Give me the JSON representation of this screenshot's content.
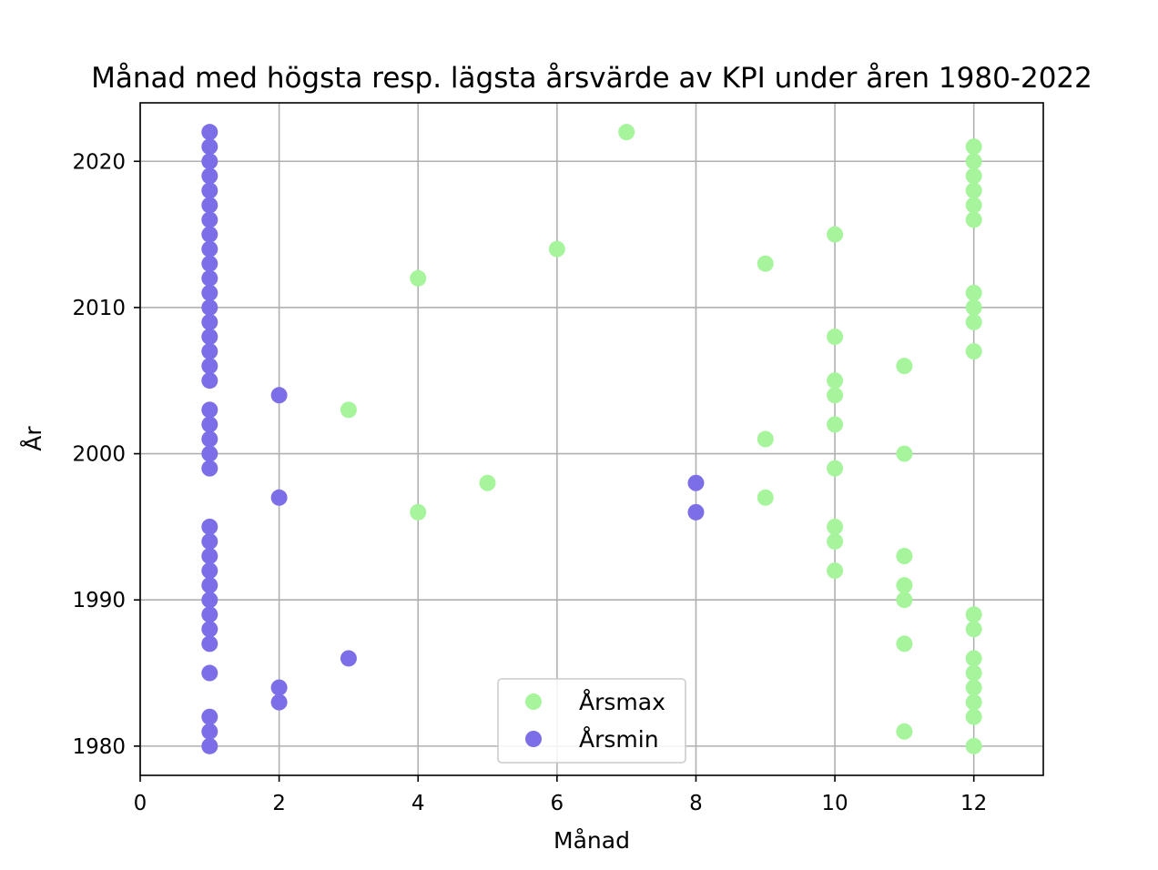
{
  "chart_data": {
    "type": "scatter",
    "title": "Månad med högsta resp. lägsta årsvärde av KPI under åren 1980-2022",
    "xlabel": "Månad",
    "ylabel": "År",
    "xlim": [
      0,
      13
    ],
    "ylim": [
      1978,
      2024
    ],
    "xticks": [
      0,
      2,
      4,
      6,
      8,
      10,
      12
    ],
    "yticks": [
      1980,
      1990,
      2000,
      2010,
      2020
    ],
    "grid": true,
    "legend_position": "bottom-center",
    "series": [
      {
        "name": "Årsmax",
        "color": "#a6f59c",
        "points": [
          [
            12,
            1980
          ],
          [
            11,
            1981
          ],
          [
            12,
            1982
          ],
          [
            12,
            1983
          ],
          [
            12,
            1984
          ],
          [
            12,
            1985
          ],
          [
            12,
            1986
          ],
          [
            11,
            1987
          ],
          [
            12,
            1988
          ],
          [
            12,
            1989
          ],
          [
            11,
            1990
          ],
          [
            11,
            1991
          ],
          [
            10,
            1992
          ],
          [
            11,
            1993
          ],
          [
            10,
            1994
          ],
          [
            10,
            1995
          ],
          [
            4,
            1996
          ],
          [
            9,
            1997
          ],
          [
            5,
            1998
          ],
          [
            10,
            1999
          ],
          [
            11,
            2000
          ],
          [
            9,
            2001
          ],
          [
            10,
            2002
          ],
          [
            3,
            2003
          ],
          [
            10,
            2004
          ],
          [
            10,
            2005
          ],
          [
            11,
            2006
          ],
          [
            12,
            2007
          ],
          [
            10,
            2008
          ],
          [
            12,
            2009
          ],
          [
            12,
            2010
          ],
          [
            12,
            2011
          ],
          [
            4,
            2012
          ],
          [
            9,
            2013
          ],
          [
            6,
            2014
          ],
          [
            10,
            2015
          ],
          [
            12,
            2016
          ],
          [
            12,
            2017
          ],
          [
            12,
            2018
          ],
          [
            12,
            2019
          ],
          [
            12,
            2020
          ],
          [
            12,
            2021
          ],
          [
            7,
            2022
          ]
        ]
      },
      {
        "name": "Årsmin",
        "color": "#7b6ee6",
        "points": [
          [
            1,
            1980
          ],
          [
            1,
            1981
          ],
          [
            1,
            1982
          ],
          [
            2,
            1983
          ],
          [
            2,
            1984
          ],
          [
            1,
            1985
          ],
          [
            3,
            1986
          ],
          [
            1,
            1987
          ],
          [
            1,
            1988
          ],
          [
            1,
            1989
          ],
          [
            1,
            1990
          ],
          [
            1,
            1991
          ],
          [
            1,
            1992
          ],
          [
            1,
            1993
          ],
          [
            1,
            1994
          ],
          [
            1,
            1995
          ],
          [
            8,
            1996
          ],
          [
            2,
            1997
          ],
          [
            8,
            1998
          ],
          [
            1,
            1999
          ],
          [
            1,
            2000
          ],
          [
            1,
            2001
          ],
          [
            1,
            2002
          ],
          [
            1,
            2003
          ],
          [
            2,
            2004
          ],
          [
            1,
            2005
          ],
          [
            1,
            2006
          ],
          [
            1,
            2007
          ],
          [
            1,
            2008
          ],
          [
            1,
            2009
          ],
          [
            1,
            2010
          ],
          [
            1,
            2011
          ],
          [
            1,
            2012
          ],
          [
            1,
            2013
          ],
          [
            1,
            2014
          ],
          [
            1,
            2015
          ],
          [
            1,
            2016
          ],
          [
            1,
            2017
          ],
          [
            1,
            2018
          ],
          [
            1,
            2019
          ],
          [
            1,
            2020
          ],
          [
            1,
            2021
          ],
          [
            1,
            2022
          ]
        ]
      }
    ]
  }
}
